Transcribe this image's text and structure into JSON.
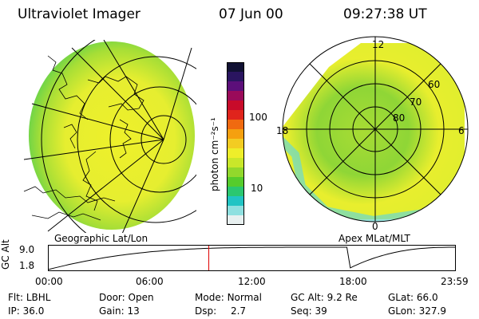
{
  "header": {
    "title": "Ultraviolet Imager",
    "date": "07 Jun 00",
    "time": "09:27:38 UT"
  },
  "colorbar": {
    "unit_label": "photon cm⁻²s⁻¹",
    "ticks": [
      "100",
      "10"
    ],
    "colors": [
      "#111133",
      "#2a1560",
      "#5c0f7a",
      "#9a0a5a",
      "#c80b2a",
      "#e0241c",
      "#f06a10",
      "#f5a00f",
      "#f3cc22",
      "#eeee2a",
      "#c9e72a",
      "#92d82c",
      "#56cc2c",
      "#2bc770",
      "#21c4c4",
      "#8fe0e0",
      "#e8f0f0"
    ]
  },
  "left_panel": {
    "label": "Geographic Lat/Lon"
  },
  "right_panel": {
    "label": "Apex MLat/MLT",
    "lat_labels": [
      "60",
      "70",
      "80"
    ],
    "mlt_labels": {
      "top": "12",
      "left": "18",
      "right": "6",
      "bottom": "0"
    }
  },
  "altitude_plot": {
    "ylabel": "GC Alt",
    "yticks": [
      "9.0",
      "1.8"
    ],
    "xticks": [
      "00:00",
      "06:00",
      "12:00",
      "18:00",
      "23:59"
    ],
    "current_time_hours": 9.46,
    "marker_color": "#e00000"
  },
  "info": {
    "row1": [
      {
        "label": "Flt:",
        "value": "LBHL"
      },
      {
        "label": "Door:",
        "value": "Open"
      },
      {
        "label": "Mode:",
        "value": "Normal"
      },
      {
        "label": "GC Alt:",
        "value": "9.2 Re"
      },
      {
        "label": "GLat:",
        "value": "66.0"
      }
    ],
    "row2": [
      {
        "label": "IP:",
        "value": "36.0"
      },
      {
        "label": "Gain:",
        "value": "13"
      },
      {
        "label": "Dsp:",
        "value": "2.7"
      },
      {
        "label": "Seq:",
        "value": "39"
      },
      {
        "label": "GLon:",
        "value": "327.9"
      }
    ]
  }
}
